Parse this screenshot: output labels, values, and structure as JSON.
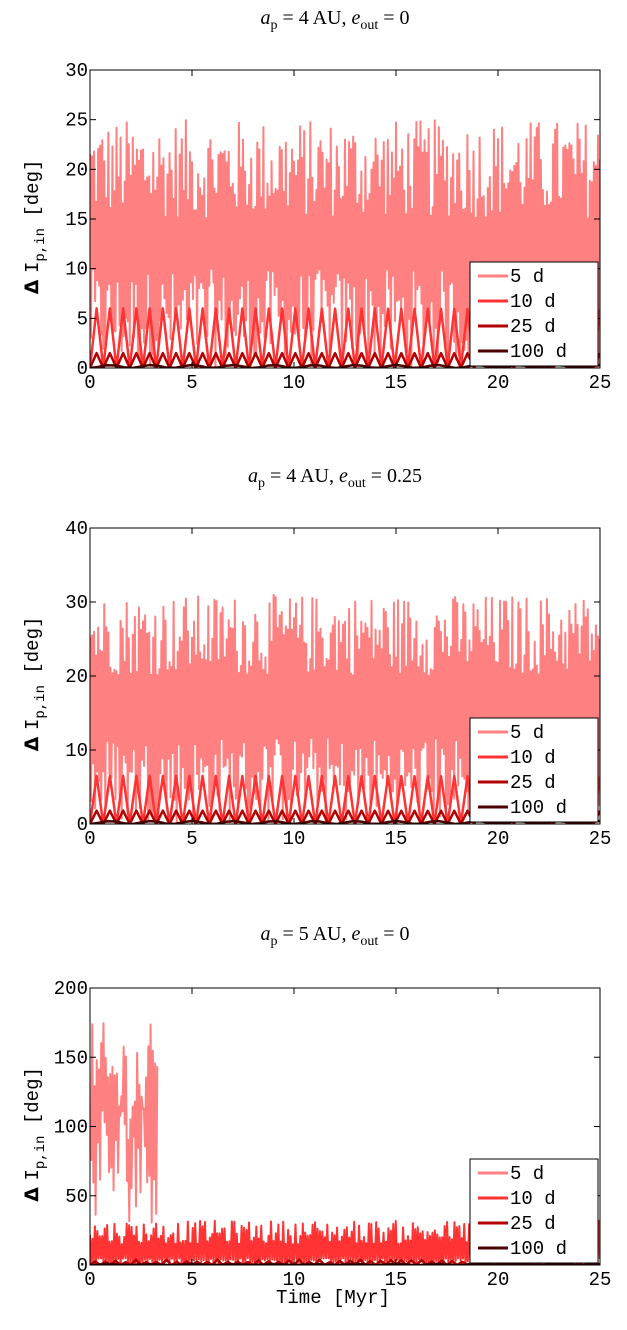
{
  "chart_data": [
    {
      "type": "line",
      "title_parts": {
        "a": "a",
        "a_sub": "p",
        "eq1": " = 4 AU, ",
        "e": "e",
        "e_sub": "out",
        "eq2": " = 0"
      },
      "ylabel": {
        "delta": "Δ",
        "sym": "I",
        "sub": "p,in",
        "unit": "[deg]"
      },
      "xlabel": "",
      "xlim": [
        0,
        25
      ],
      "ylim": [
        0,
        30
      ],
      "xticks": [
        0,
        5,
        10,
        15,
        20,
        25
      ],
      "yticks": [
        0,
        5,
        10,
        15,
        20,
        25,
        30
      ],
      "legend_position": "lower-right",
      "series": [
        {
          "name": "5 d",
          "color": "#ff8080",
          "low": [
            0,
            10
          ],
          "high": [
            15,
            25
          ],
          "period": 0.1
        },
        {
          "name": "10 d",
          "color": "#ff3333",
          "low": [
            0,
            0
          ],
          "high": [
            6,
            6
          ],
          "period": 0.65
        },
        {
          "name": "25 d",
          "color": "#b30000",
          "low": [
            0,
            0
          ],
          "high": [
            1.5,
            1.5
          ],
          "period": 0.65
        },
        {
          "name": "100 d",
          "color": "#4d0000",
          "low": [
            0,
            0
          ],
          "high": [
            0.3,
            0.3
          ],
          "period": 2.0
        }
      ]
    },
    {
      "type": "line",
      "title_parts": {
        "a": "a",
        "a_sub": "p",
        "eq1": " = 4 AU, ",
        "e": "e",
        "e_sub": "out",
        "eq2": " = 0.25"
      },
      "ylabel": {
        "delta": "Δ",
        "sym": "I",
        "sub": "p,in",
        "unit": "[deg]"
      },
      "xlabel": "",
      "xlim": [
        0,
        25
      ],
      "ylim": [
        0,
        40
      ],
      "xticks": [
        0,
        5,
        10,
        15,
        20,
        25
      ],
      "yticks": [
        0,
        10,
        20,
        30,
        40
      ],
      "legend_position": "lower-right",
      "series": [
        {
          "name": "5 d",
          "color": "#ff8080",
          "low": [
            0,
            12
          ],
          "high": [
            20,
            31
          ],
          "period": 0.1
        },
        {
          "name": "10 d",
          "color": "#ff3333",
          "low": [
            0,
            0
          ],
          "high": [
            6.5,
            6.5
          ],
          "period": 0.65
        },
        {
          "name": "25 d",
          "color": "#b30000",
          "low": [
            0,
            0
          ],
          "high": [
            1.8,
            1.8
          ],
          "period": 0.65
        },
        {
          "name": "100 d",
          "color": "#4d0000",
          "low": [
            0,
            0
          ],
          "high": [
            0.4,
            0.4
          ],
          "period": 2.0
        }
      ]
    },
    {
      "type": "line",
      "title_parts": {
        "a": "a",
        "a_sub": "p",
        "eq1": " = 5 AU, ",
        "e": "e",
        "e_sub": "out",
        "eq2": " = 0"
      },
      "ylabel": {
        "delta": "Δ",
        "sym": "I",
        "sub": "p,in",
        "unit": "[deg]"
      },
      "xlabel": "Time [Myr]",
      "xlim": [
        0,
        25
      ],
      "ylim": [
        0,
        200
      ],
      "xticks": [
        0,
        5,
        10,
        15,
        20,
        25
      ],
      "yticks": [
        0,
        50,
        100,
        150,
        200
      ],
      "legend_position": "lower-right",
      "series": [
        {
          "name": "5 d",
          "color": "#ff8080",
          "low": [
            30,
            120
          ],
          "high": [
            90,
            175
          ],
          "period": 0.15,
          "end": 3.3
        },
        {
          "name": "10 d",
          "color": "#ff3333",
          "low": [
            0,
            5
          ],
          "high": [
            15,
            32
          ],
          "period": 0.12
        },
        {
          "name": "25 d",
          "color": "#b30000",
          "low": [
            0,
            0
          ],
          "high": [
            2,
            4
          ],
          "period": 0.5
        },
        {
          "name": "100 d",
          "color": "#4d0000",
          "low": [
            0,
            0
          ],
          "high": [
            0.5,
            1
          ],
          "period": 2.0
        }
      ]
    }
  ]
}
